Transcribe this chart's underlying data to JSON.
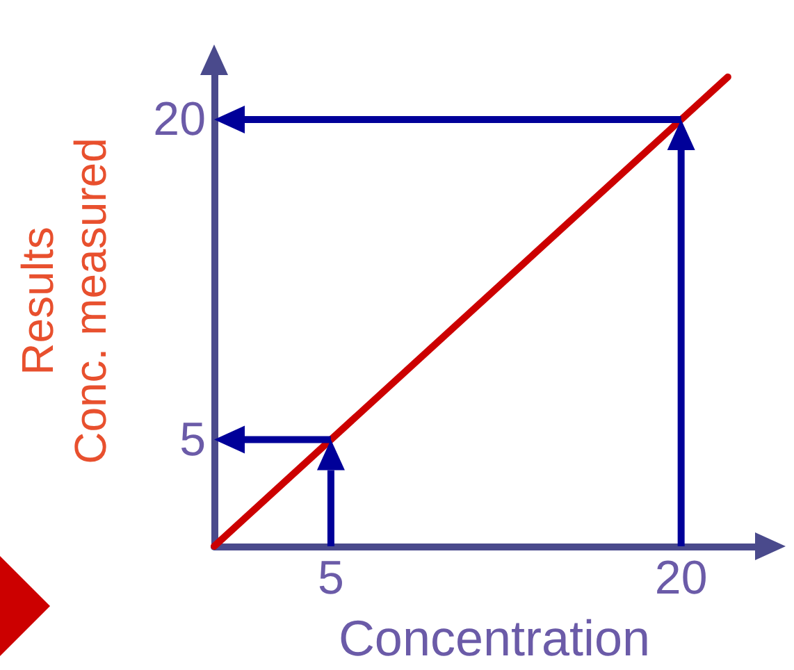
{
  "chart_data": {
    "type": "line",
    "xlabel": "Concentration",
    "ylabel": "Results\nConc. measured",
    "xlim": [
      0,
      24
    ],
    "ylim": [
      0,
      23
    ],
    "xticks": [
      5,
      20
    ],
    "yticks": [
      5,
      20
    ],
    "grid": true,
    "marker": "none",
    "series": [
      {
        "color": "#cc0000",
        "x": [
          0,
          22
        ],
        "values": [
          0,
          22
        ]
      }
    ]
  }
}
